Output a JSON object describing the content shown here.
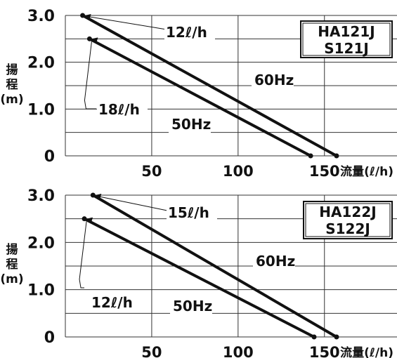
{
  "chart_data": [
    {
      "type": "line",
      "model_labels": [
        "HA121J",
        "S121J"
      ],
      "ylabel": "揚程(m)",
      "xlabel": "流量(ℓ/h)",
      "x_ticks": [
        "50",
        "100",
        "150"
      ],
      "y_ticks": [
        "0",
        "1.0",
        "2.0",
        "3.0"
      ],
      "xlim": [
        0,
        192
      ],
      "ylim": [
        0,
        3
      ],
      "grid": true,
      "series": [
        {
          "name": "60Hz",
          "x": [
            10,
            157
          ],
          "y": [
            3.0,
            0
          ]
        },
        {
          "name": "50Hz",
          "x": [
            14,
            142
          ],
          "y": [
            2.5,
            0
          ]
        }
      ],
      "annotations": [
        {
          "text": "12ℓ/h",
          "series": 0
        },
        {
          "text": "18ℓ/h",
          "series": 1
        }
      ]
    },
    {
      "type": "line",
      "model_labels": [
        "HA122J",
        "S122J"
      ],
      "ylabel": "揚程(m)",
      "xlabel": "流量(ℓ/h)",
      "x_ticks": [
        "50",
        "100",
        "150"
      ],
      "y_ticks": [
        "0",
        "1.0",
        "2.0",
        "3.0"
      ],
      "xlim": [
        0,
        192
      ],
      "ylim": [
        0,
        3
      ],
      "grid": true,
      "series": [
        {
          "name": "60Hz",
          "x": [
            16,
            157
          ],
          "y": [
            3.0,
            0
          ]
        },
        {
          "name": "50Hz",
          "x": [
            11,
            144
          ],
          "y": [
            2.5,
            0
          ]
        }
      ],
      "annotations": [
        {
          "text": "15ℓ/h",
          "series": 0
        },
        {
          "text": "12ℓ/h",
          "series": 1
        }
      ]
    }
  ]
}
